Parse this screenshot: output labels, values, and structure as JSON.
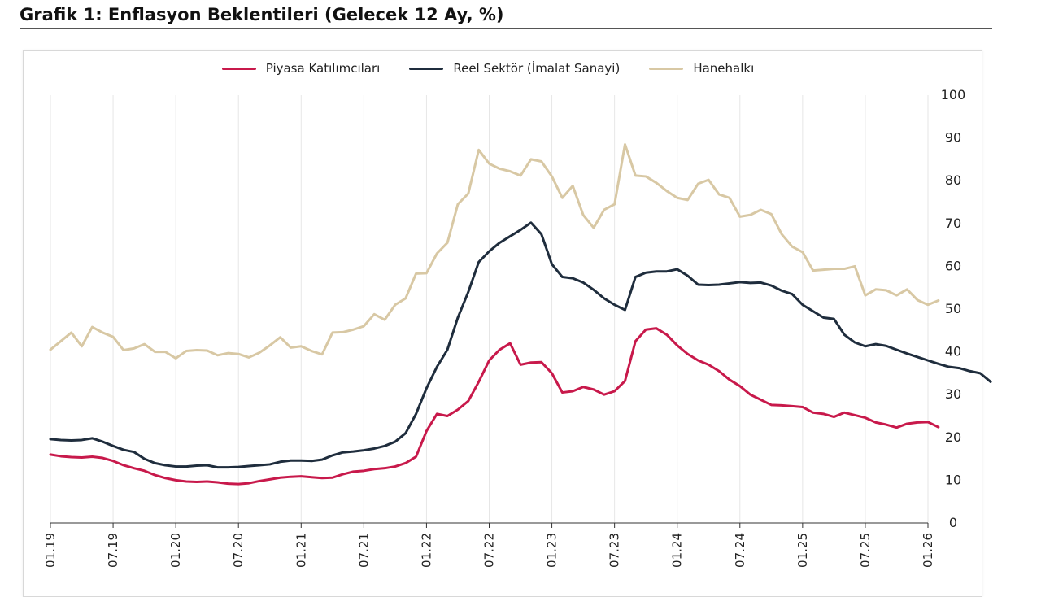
{
  "title": "Grafik 1: Enflasyon Beklentileri (Gelecek 12 Ay, %)",
  "chart_data": {
    "type": "line",
    "title": "Grafik 1: Enflasyon Beklentileri (Gelecek 12 Ay, %)",
    "xlabel": "",
    "ylabel": "",
    "ylim": [
      0,
      100
    ],
    "yticks": [
      0,
      10,
      20,
      30,
      40,
      50,
      60,
      70,
      80,
      90,
      100
    ],
    "xtick_labels": [
      "01.19",
      "07.19",
      "01.20",
      "07.20",
      "01.21",
      "07.21",
      "01.22",
      "07.22",
      "01.23",
      "07.23",
      "01.24",
      "07.24",
      "01.25",
      "07.25",
      "01.26"
    ],
    "x_start": "01.19",
    "x_end": "01.26",
    "grid": "vertical",
    "legend_position": "top",
    "y_axis_side": "right",
    "series": [
      {
        "name": "Piyasa Katılımcıları",
        "color": "#c8194b",
        "values": [
          16,
          15.6,
          15.4,
          15.3,
          15.5,
          15.2,
          14.5,
          13.5,
          12.8,
          12.2,
          11.2,
          10.5,
          10,
          9.7,
          9.6,
          9.7,
          9.5,
          9.2,
          9.1,
          9.3,
          9.8,
          10.2,
          10.6,
          10.8,
          10.9,
          10.7,
          10.5,
          10.6,
          11.4,
          12,
          12.2,
          12.6,
          12.8,
          13.2,
          14,
          15.5,
          21.5,
          25.5,
          25,
          26.5,
          28.5,
          33,
          38,
          40.5,
          42,
          37,
          37.5,
          37.6,
          35,
          30.5,
          30.8,
          31.8,
          31.2,
          30,
          30.8,
          33.2,
          42.5,
          45.2,
          45.5,
          44,
          41.5,
          39.5,
          38,
          37,
          35.5,
          33.5,
          32,
          30,
          28.8,
          27.6,
          27.5,
          27.3,
          27.1,
          25.8,
          25.5,
          24.8,
          25.8,
          25.2,
          24.6,
          23.5,
          23,
          22.3,
          23.2,
          23.5,
          23.6,
          22.4
        ]
      },
      {
        "name": "Reel Sektör (İmalat Sanayi)",
        "color": "#1f2d3d",
        "values": [
          19.6,
          19.4,
          19.3,
          19.4,
          19.8,
          19,
          18,
          17.1,
          16.6,
          15,
          14,
          13.5,
          13.2,
          13.2,
          13.4,
          13.5,
          13,
          13,
          13.1,
          13.3,
          13.5,
          13.7,
          14.3,
          14.6,
          14.6,
          14.5,
          14.8,
          15.8,
          16.5,
          16.7,
          17,
          17.4,
          18,
          19,
          21,
          25.5,
          31.5,
          36.5,
          40.5,
          48,
          54,
          61,
          63.5,
          65.5,
          67,
          68.5,
          70.2,
          67.5,
          60.5,
          57.5,
          57.2,
          56.2,
          54.5,
          52.5,
          51,
          49.8,
          57.5,
          58.5,
          58.8,
          58.8,
          59.3,
          57.8,
          55.7,
          55.6,
          55.7,
          56,
          56.3,
          56.1,
          56.2,
          55.5,
          54.3,
          53.5,
          51,
          49.5,
          48,
          47.7,
          44,
          42.2,
          41.3,
          41.8,
          41.4,
          40.5,
          39.6,
          38.8,
          38,
          37.2,
          36.5,
          36.2,
          35.5,
          35,
          33
        ]
      },
      {
        "name": "Hanehalkı",
        "color": "#d8c8a4",
        "values": [
          40.5,
          42.5,
          44.5,
          41.3,
          45.8,
          44.5,
          43.5,
          40.4,
          40.8,
          41.8,
          40,
          40,
          38.5,
          40.2,
          40.4,
          40.3,
          39.2,
          39.7,
          39.5,
          38.7,
          39.8,
          41.5,
          43.4,
          41,
          41.3,
          40.2,
          39.4,
          44.5,
          44.6,
          45.2,
          46,
          48.8,
          47.5,
          51,
          52.5,
          58.3,
          58.4,
          63,
          65.5,
          74.5,
          77,
          87.2,
          84,
          82.8,
          82.2,
          81.2,
          85,
          84.5,
          81,
          76,
          78.8,
          72,
          69,
          73.2,
          74.5,
          88.5,
          81.2,
          81,
          79.5,
          77.6,
          76,
          75.5,
          79.3,
          80.2,
          76.8,
          76,
          71.6,
          72,
          73.2,
          72.2,
          67.5,
          64.6,
          63.3,
          59,
          59.2,
          59.4,
          59.4,
          60,
          53.2,
          54.6,
          54.4,
          53.2,
          54.6,
          52.1,
          51,
          52
        ]
      }
    ]
  }
}
